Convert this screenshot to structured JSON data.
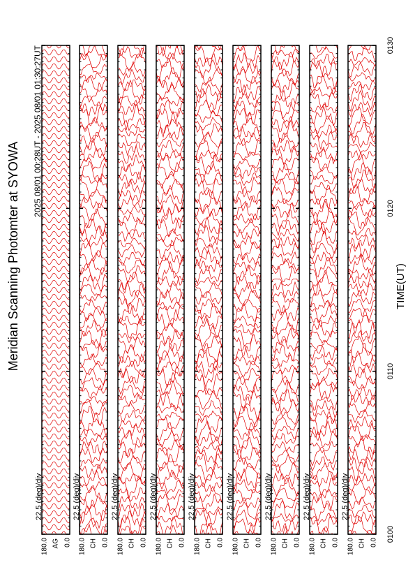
{
  "chart_data": {
    "type": "line",
    "title": "Meridian Scanning Photomter at SYOWA",
    "subtitle": "2025 08/01 00:28UT - 2025 08/01 01:30:27UT",
    "x_label": "TIME(UT)",
    "xlim": [
      0,
      30
    ],
    "xticks": [
      {
        "value": 0,
        "label": "0100"
      },
      {
        "value": 10,
        "label": "0110"
      },
      {
        "value": 20,
        "label": "0120"
      },
      {
        "value": 30,
        "label": "0130"
      }
    ],
    "color": "#e00000",
    "panels": [
      {
        "name": "AG",
        "scale": "22.5 (deg)/div",
        "ylim": [
          0,
          180
        ],
        "yticks": [
          {
            "value": 180,
            "label": "180.0"
          },
          {
            "value": 0,
            "label": "0.0"
          }
        ]
      },
      {
        "name": "CH",
        "scale": "22.5 (deg)/div",
        "ylim": [
          0,
          180
        ],
        "yticks": [
          {
            "value": 180,
            "label": "180.0"
          },
          {
            "value": 0,
            "label": "0.0"
          }
        ]
      },
      {
        "name": "CH",
        "scale": "22.5 (deg)/div",
        "ylim": [
          0,
          180
        ],
        "yticks": [
          {
            "value": 180,
            "label": "180.0"
          },
          {
            "value": 0,
            "label": "0.0"
          }
        ]
      },
      {
        "name": "CH",
        "scale": "22.5 (deg)/div",
        "ylim": [
          0,
          180
        ],
        "yticks": [
          {
            "value": 180,
            "label": "180.0"
          },
          {
            "value": 0,
            "label": "0.0"
          }
        ]
      },
      {
        "name": "CH",
        "scale": "22.5 (deg)/div",
        "ylim": [
          0,
          180
        ],
        "yticks": [
          {
            "value": 180,
            "label": "180.0"
          },
          {
            "value": 0,
            "label": "0.0"
          }
        ]
      },
      {
        "name": "CH",
        "scale": "22.5 (deg)/div",
        "ylim": [
          0,
          180
        ],
        "yticks": [
          {
            "value": 180,
            "label": "180.0"
          },
          {
            "value": 0,
            "label": "0.0"
          }
        ]
      },
      {
        "name": "CH",
        "scale": "22.5 (deg)/div",
        "ylim": [
          0,
          180
        ],
        "yticks": [
          {
            "value": 180,
            "label": "180.0"
          },
          {
            "value": 0,
            "label": "0.0"
          }
        ]
      },
      {
        "name": "CH",
        "scale": "22.5 (deg)/div",
        "ylim": [
          0,
          180
        ],
        "yticks": [
          {
            "value": 180,
            "label": "180.0"
          },
          {
            "value": 0,
            "label": "0.0"
          }
        ]
      },
      {
        "name": "CH",
        "scale": "22.5 (deg)/div",
        "ylim": [
          0,
          180
        ],
        "yticks": [
          {
            "value": 180,
            "label": "180.0"
          },
          {
            "value": 0,
            "label": "0.0"
          }
        ]
      }
    ]
  }
}
